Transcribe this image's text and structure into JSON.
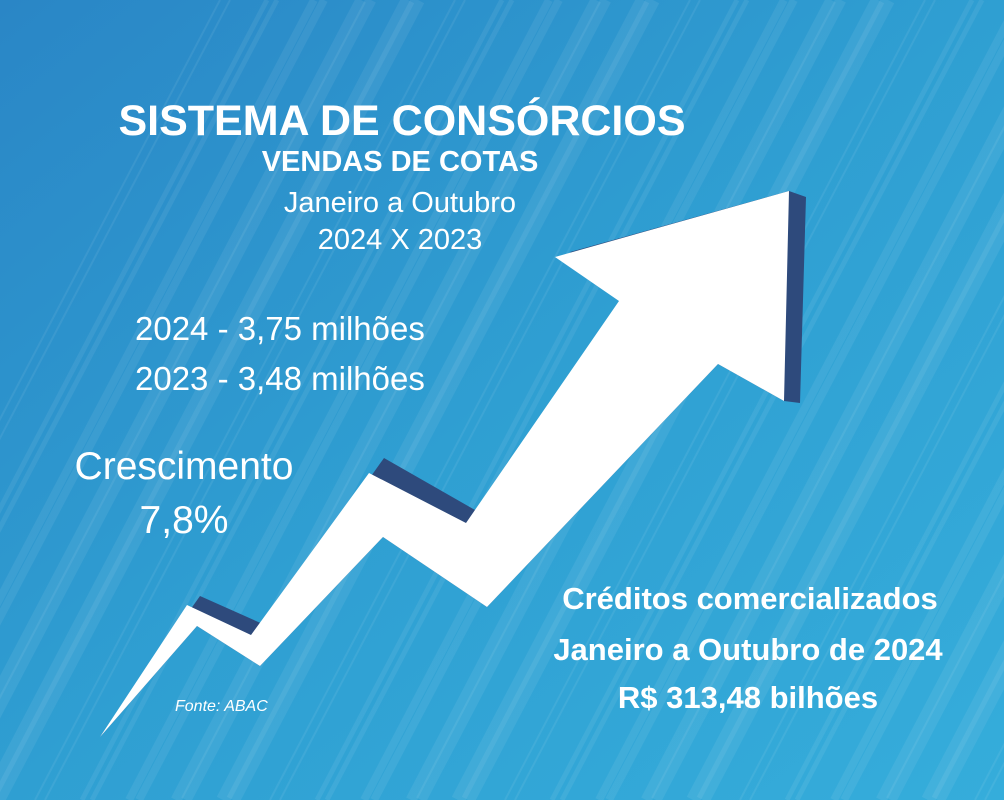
{
  "colors": {
    "background": "#2f9fd2",
    "background_dark": "#2a7fc0",
    "arrow": "#ffffff",
    "arrow_shadow": "#2e4a7c",
    "text": "#ffffff"
  },
  "icons": {
    "arrow": "rising-zigzag-arrow-icon"
  },
  "header": {
    "title": "SISTEMA DE CONSÓRCIOS",
    "subtitle": "VENDAS DE COTAS",
    "period": "Janeiro a Outubro",
    "comparison": "2024 X 2023"
  },
  "sales": {
    "line_2024": "2024 - 3,75 milhões",
    "line_2023": "2023 - 3,48 milhões"
  },
  "growth": {
    "label": "Crescimento",
    "value": "7,8%"
  },
  "source": "Fonte: ABAC",
  "credits": {
    "line1": "Créditos comercializados",
    "line2": "Janeiro a Outubro de 2024",
    "line3": "R$ 313,48 bilhões"
  }
}
